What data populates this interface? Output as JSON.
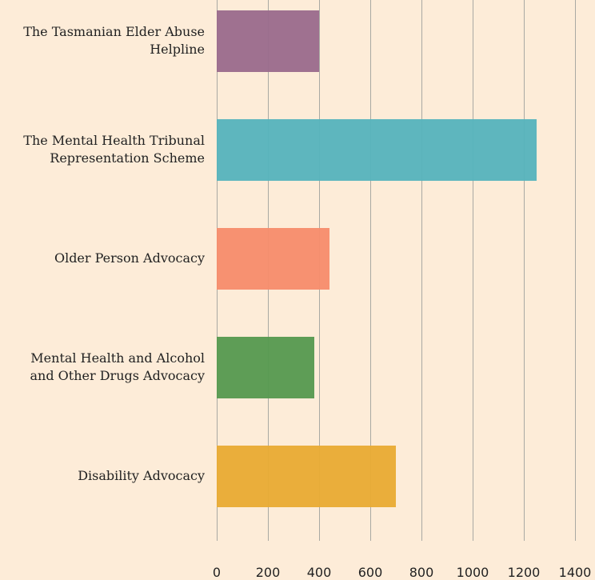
{
  "chart_data": {
    "type": "bar",
    "orientation": "horizontal",
    "categories": [
      "The Tasmanian Elder Abuse Helpline",
      "The Mental Health Tribunal Representation Scheme",
      "Older Person Advocacy",
      "Mental Health and Alcohol and Other Drugs Advocacy",
      "Disability Advocacy"
    ],
    "values": [
      400,
      1250,
      440,
      380,
      700
    ],
    "colors": [
      "#9a6a8c",
      "#55b3bd",
      "#f78c6c",
      "#55994f",
      "#e9ab33"
    ],
    "xlim": [
      0,
      1400
    ],
    "xticks": [
      0,
      200,
      400,
      600,
      800,
      1000,
      1200,
      1400
    ],
    "grid": true
  }
}
